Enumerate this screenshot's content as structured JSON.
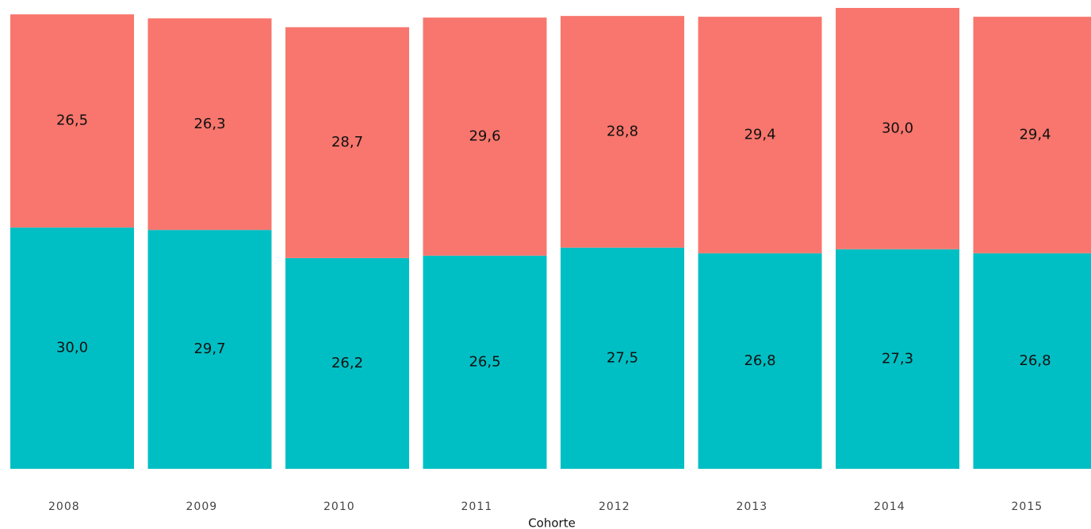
{
  "chart_data": {
    "type": "stacked_bar",
    "x_label": "Cohorte",
    "categories": [
      "2008",
      "2009",
      "2010",
      "2011",
      "2012",
      "2013",
      "2014",
      "2015"
    ],
    "series": [
      {
        "color": "#00BFC4",
        "values": [
          30.0,
          29.7,
          26.2,
          26.5,
          27.5,
          26.8,
          27.3,
          26.8
        ],
        "value_labels": [
          "30,0",
          "29,7",
          "26,2",
          "26,5",
          "27,5",
          "26,8",
          "27,3",
          "26,8"
        ]
      },
      {
        "color": "#F8766D",
        "values": [
          26.5,
          26.3,
          28.7,
          29.6,
          28.8,
          29.4,
          30.0,
          29.4
        ],
        "value_labels": [
          "26,5",
          "26,3",
          "28,7",
          "29,6",
          "28,8",
          "29,4",
          "30,0",
          "29,4"
        ]
      }
    ]
  }
}
